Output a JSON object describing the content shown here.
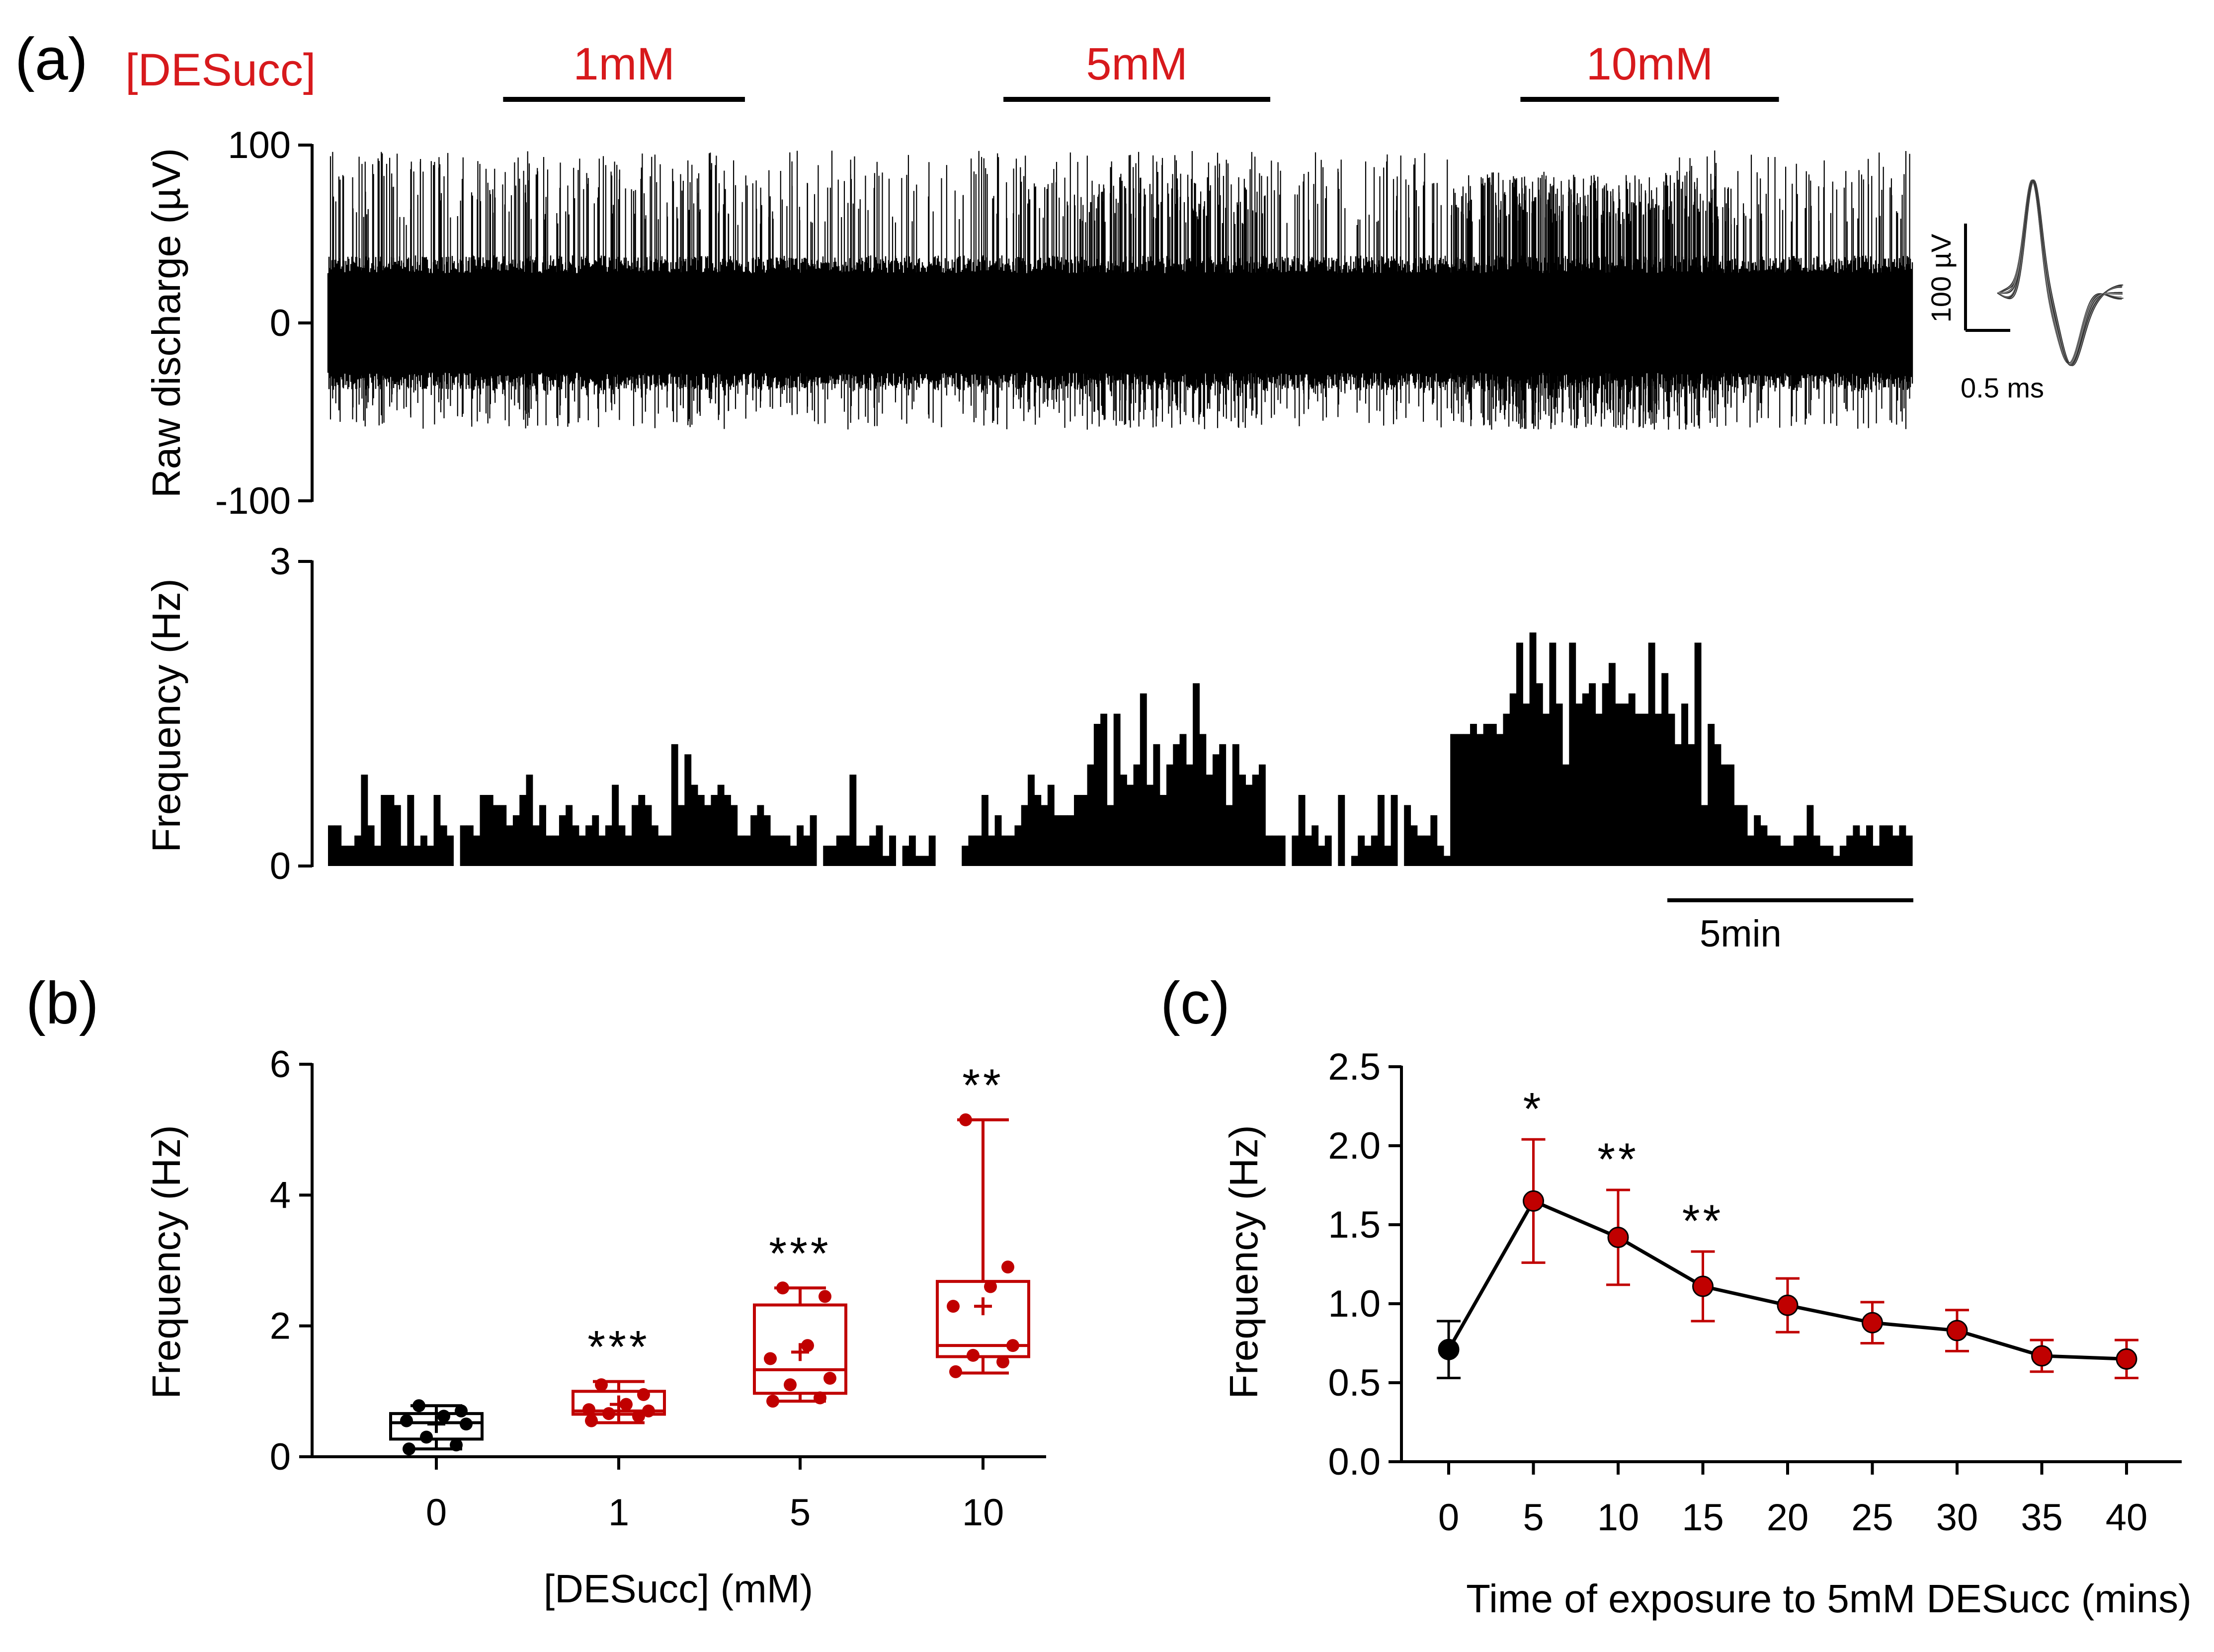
{
  "colors": {
    "black": "#000000",
    "red": "#c00000",
    "label_red": "#d7191c"
  },
  "chart_data": [
    {
      "panel": "(a)",
      "type": "line",
      "title": "",
      "ylabel": "Raw discharge (µV)",
      "yticks": [
        "100",
        "0",
        "-100"
      ],
      "ylim": [
        -100,
        100
      ],
      "condition_label": "[DESucc]",
      "applications": [
        {
          "label": "1mM",
          "start_min": 2.1,
          "end_min": 5.0
        },
        {
          "label": "5mM",
          "start_min": 8.1,
          "end_min": 11.3
        },
        {
          "label": "10mM",
          "start_min": 14.3,
          "end_min": 17.4
        }
      ],
      "recording_minutes": 19,
      "waveform_inset": {
        "y_scale": "100 µV",
        "x_scale": "0.5 ms"
      }
    },
    {
      "panel": "(a)",
      "type": "bar",
      "title": "",
      "ylabel": "Frequency (Hz)",
      "yticks": [
        "3",
        "0"
      ],
      "ylim": [
        0,
        3
      ],
      "bin_seconds": 10,
      "time_scale_bar": "5min",
      "values": [
        0.4,
        0.4,
        0.2,
        0.2,
        0.3,
        0.9,
        0.4,
        0.2,
        0.7,
        0.7,
        0.6,
        0.2,
        0.7,
        0.2,
        0.3,
        0.2,
        0.7,
        0.4,
        0.3,
        0.0,
        0.4,
        0.4,
        0.3,
        0.7,
        0.7,
        0.6,
        0.6,
        0.4,
        0.5,
        0.7,
        0.9,
        0.4,
        0.6,
        0.3,
        0.3,
        0.5,
        0.6,
        0.4,
        0.3,
        0.4,
        0.5,
        0.3,
        0.4,
        0.8,
        0.4,
        0.3,
        0.6,
        0.7,
        0.6,
        0.4,
        0.3,
        0.3,
        1.2,
        0.6,
        1.1,
        0.8,
        0.7,
        0.6,
        0.7,
        0.8,
        0.7,
        0.6,
        0.3,
        0.3,
        0.5,
        0.6,
        0.5,
        0.3,
        0.3,
        0.3,
        0.2,
        0.4,
        0.3,
        0.5,
        0.0,
        0.2,
        0.2,
        0.3,
        0.3,
        0.9,
        0.2,
        0.2,
        0.3,
        0.4,
        0.1,
        0.3,
        0.0,
        0.2,
        0.3,
        0.1,
        0.1,
        0.3,
        0.0,
        0.0,
        0.0,
        0.0,
        0.2,
        0.3,
        0.3,
        0.7,
        0.3,
        0.5,
        0.3,
        0.3,
        0.4,
        0.6,
        0.9,
        0.7,
        0.6,
        0.8,
        0.5,
        0.5,
        0.5,
        0.7,
        0.7,
        1.0,
        1.4,
        1.5,
        0.6,
        1.5,
        0.9,
        0.8,
        1.0,
        1.7,
        0.8,
        1.2,
        0.7,
        1.0,
        1.2,
        1.3,
        1.0,
        1.8,
        1.3,
        0.9,
        1.1,
        1.2,
        0.6,
        1.2,
        0.9,
        0.8,
        0.9,
        1.0,
        0.3,
        0.3,
        0.3,
        0.0,
        0.3,
        0.7,
        0.3,
        0.4,
        0.2,
        0.3,
        0.0,
        0.7,
        0.0,
        0.1,
        0.3,
        0.2,
        0.3,
        0.7,
        0.2,
        0.7,
        0.0,
        0.6,
        0.4,
        0.3,
        0.3,
        0.5,
        0.2,
        0.1,
        1.3,
        1.3,
        1.3,
        1.4,
        1.3,
        1.4,
        1.4,
        1.3,
        1.5,
        1.7,
        2.2,
        1.6,
        2.3,
        1.8,
        1.5,
        2.2,
        1.6,
        1.0,
        2.2,
        1.6,
        1.7,
        1.8,
        1.5,
        1.8,
        2.0,
        1.6,
        1.6,
        1.7,
        1.5,
        1.5,
        2.2,
        1.5,
        1.9,
        1.5,
        1.2,
        1.6,
        1.2,
        2.2,
        0.6,
        1.4,
        1.2,
        1.0,
        1.0,
        0.6,
        0.6,
        0.3,
        0.5,
        0.4,
        0.3,
        0.3,
        0.2,
        0.2,
        0.3,
        0.3,
        0.6,
        0.3,
        0.2,
        0.2,
        0.1,
        0.2,
        0.3,
        0.4,
        0.3,
        0.4,
        0.2,
        0.4,
        0.4,
        0.3,
        0.4,
        0.3
      ]
    },
    {
      "panel": "(b)",
      "type": "box",
      "title": "",
      "xlabel": "[DESucc] (mM)",
      "ylabel": "Frequency (Hz)",
      "ylim": [
        0,
        6
      ],
      "yticks": [
        "0",
        "2",
        "4",
        "6"
      ],
      "categories": [
        "0",
        "1",
        "5",
        "10"
      ],
      "box_colors": [
        "#000000",
        "#c00000",
        "#c00000",
        "#c00000"
      ],
      "significance": [
        "",
        "***",
        "***",
        "**"
      ],
      "boxes": [
        {
          "min": 0.12,
          "q1": 0.27,
          "median": 0.52,
          "q3": 0.66,
          "max": 0.78,
          "mean": 0.5,
          "points": [
            0.12,
            0.18,
            0.3,
            0.5,
            0.55,
            0.62,
            0.7,
            0.78
          ]
        },
        {
          "min": 0.52,
          "q1": 0.65,
          "median": 0.7,
          "q3": 1.0,
          "max": 1.15,
          "mean": 0.8,
          "points": [
            0.55,
            0.62,
            0.66,
            0.7,
            0.72,
            0.8,
            0.95,
            1.1
          ]
        },
        {
          "min": 0.85,
          "q1": 0.97,
          "median": 1.33,
          "q3": 2.32,
          "max": 2.58,
          "mean": 1.6,
          "points": [
            0.85,
            0.9,
            1.1,
            1.2,
            1.5,
            1.7,
            2.45,
            2.58
          ]
        },
        {
          "min": 1.28,
          "q1": 1.53,
          "median": 1.7,
          "q3": 2.68,
          "max": 5.15,
          "mean": 2.3,
          "points": [
            1.3,
            1.45,
            1.55,
            1.7,
            2.3,
            2.6,
            2.9,
            5.15
          ]
        }
      ]
    },
    {
      "panel": "(c)",
      "type": "line",
      "title": "",
      "xlabel": "Time of exposure to 5mM DESucc (mins)",
      "ylabel": "Frequency (Hz)",
      "ylim": [
        0,
        2.5
      ],
      "yticks": [
        "0.0",
        "0.5",
        "1.0",
        "1.5",
        "2.0",
        "2.5"
      ],
      "x": [
        0,
        5,
        10,
        15,
        20,
        25,
        30,
        35,
        40
      ],
      "xticks": [
        "0",
        "5",
        "10",
        "15",
        "20",
        "25",
        "30",
        "35",
        "40"
      ],
      "y": [
        0.71,
        1.65,
        1.42,
        1.11,
        0.99,
        0.88,
        0.83,
        0.67,
        0.65
      ],
      "error": [
        0.18,
        0.39,
        0.3,
        0.22,
        0.17,
        0.13,
        0.13,
        0.1,
        0.12
      ],
      "point_colors": [
        "#000000",
        "#c00000",
        "#c00000",
        "#c00000",
        "#c00000",
        "#c00000",
        "#c00000",
        "#c00000",
        "#c00000"
      ],
      "significance": [
        "",
        "*",
        "**",
        "**",
        "",
        "",
        "",
        "",
        ""
      ]
    }
  ]
}
